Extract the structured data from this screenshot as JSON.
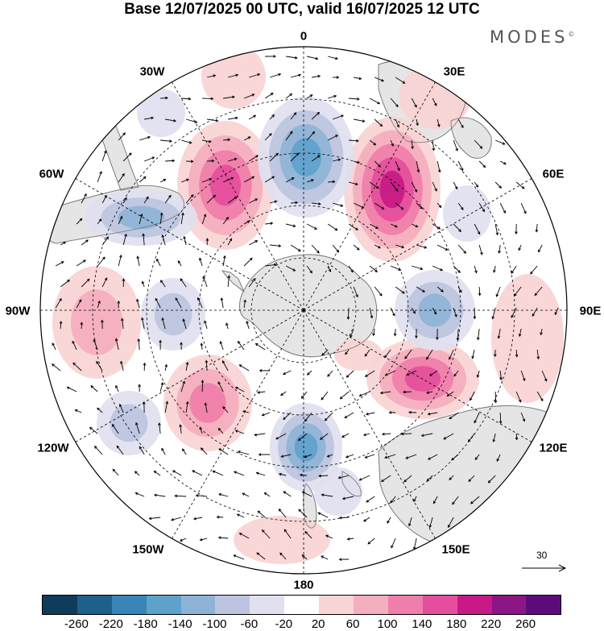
{
  "title": "Base 12/07/2025 00 UTC, valid 16/07/2025 12 UTC",
  "brand": "MODES",
  "brand_mark": "©",
  "projection": "South polar stereographic",
  "longitude_labels": {
    "lon_0": "0",
    "lon_30E": "30E",
    "lon_60E": "60E",
    "lon_90E": "90E",
    "lon_120E": "120E",
    "lon_150E": "150E",
    "lon_180": "180",
    "lon_150W": "150W",
    "lon_120W": "120W",
    "lon_90W": "90W",
    "lon_60W": "60W",
    "lon_30W": "30W"
  },
  "reference_vector": {
    "value": "30"
  },
  "colorbar": {
    "colors": [
      "#0f3c5a",
      "#1f5f8c",
      "#3a85b8",
      "#5ea2cc",
      "#8fb3d6",
      "#bcc4e0",
      "#e0e0ef",
      "#ffffff",
      "#f9d4d4",
      "#f5aebe",
      "#ef7eaa",
      "#e54e9c",
      "#c81a86",
      "#8c1784",
      "#5b0c7a"
    ],
    "tick_labels": [
      "-260",
      "-220",
      "-180",
      "-140",
      "-100",
      "-60",
      "-20",
      "20",
      "60",
      "100",
      "140",
      "180",
      "220",
      "260"
    ]
  },
  "map_colors": {
    "land": "#e5e5e5",
    "coast": "#777777",
    "grid": "#000000",
    "vectors": "#000000"
  }
}
